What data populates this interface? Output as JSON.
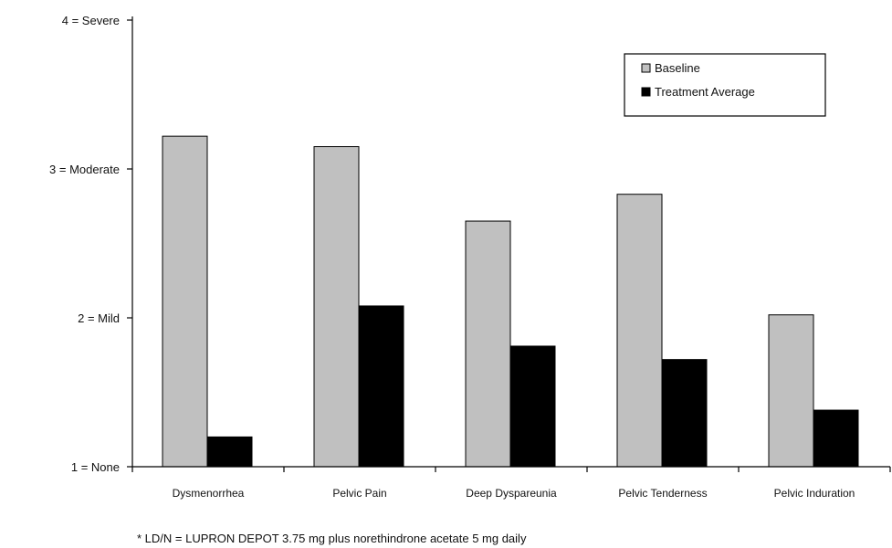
{
  "chart_data": {
    "type": "bar",
    "categories": [
      "Dysmenorrhea",
      "Pelvic Pain",
      "Deep Dyspareunia",
      "Pelvic Tenderness",
      "Pelvic Induration"
    ],
    "series": [
      {
        "name": "Baseline",
        "color": "#c0c0c0",
        "values": [
          3.22,
          3.15,
          2.65,
          2.83,
          2.02
        ]
      },
      {
        "name": "Treatment Average",
        "color": "#000000",
        "values": [
          1.2,
          2.08,
          1.81,
          1.72,
          1.38
        ]
      }
    ],
    "y_ticks": [
      {
        "value": 1,
        "label": "1 = None"
      },
      {
        "value": 2,
        "label": "2 = Mild"
      },
      {
        "value": 3,
        "label": "3 = Moderate"
      },
      {
        "value": 4,
        "label": "4 = Severe"
      }
    ],
    "ylim": [
      1,
      4
    ],
    "title": "",
    "xlabel": "",
    "ylabel": "",
    "grid": false,
    "legend_position": "top-right"
  },
  "footnote": "* LD/N = LUPRON DEPOT 3.75 mg plus norethindrone acetate 5 mg daily"
}
